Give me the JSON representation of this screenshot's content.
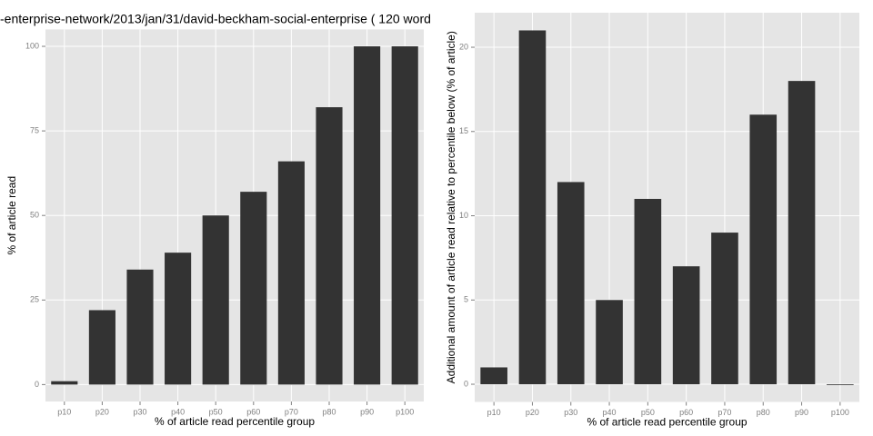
{
  "chart_data": [
    {
      "type": "bar",
      "title": "-enterprise-network/2013/jan/31/david-beckham-social-enterprise ( 120 word",
      "x_label": "% of article read percentile group",
      "y_label": "% of article read",
      "categories": [
        "p10",
        "p20",
        "p30",
        "p40",
        "p50",
        "p60",
        "p70",
        "p80",
        "p90",
        "p100"
      ],
      "values": [
        1,
        22,
        34,
        39,
        50,
        57,
        66,
        82,
        100,
        100
      ],
      "color": "#333333",
      "ylim": [
        -5,
        105
      ],
      "yticks": [
        0,
        25,
        50,
        75,
        100
      ],
      "grid": true
    },
    {
      "type": "bar",
      "x_label": "% of article read percentile group",
      "y_label": "Additional amount of article read relative to percentile below (% of article)",
      "categories": [
        "p10",
        "p20",
        "p30",
        "p40",
        "p50",
        "p60",
        "p70",
        "p80",
        "p90",
        "p100"
      ],
      "values": [
        1,
        21,
        12,
        5,
        11,
        7,
        9,
        16,
        18,
        0
      ],
      "color": "#333333",
      "ylim": [
        -1.05,
        22.05
      ],
      "yticks": [
        0,
        5,
        10,
        15,
        20
      ],
      "grid": true
    }
  ]
}
